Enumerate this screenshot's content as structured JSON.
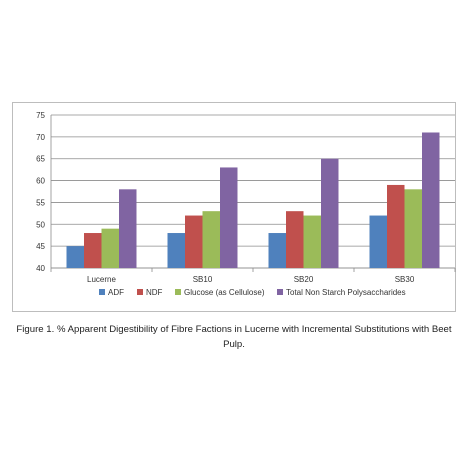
{
  "chart_data": {
    "type": "bar",
    "categories": [
      "Lucerne",
      "SB10",
      "SB20",
      "SB30"
    ],
    "series": [
      {
        "name": "ADF",
        "color": "#4F81BD",
        "values": [
          45,
          48,
          48,
          52
        ]
      },
      {
        "name": "NDF",
        "color": "#C0504D",
        "values": [
          48,
          52,
          53,
          59
        ]
      },
      {
        "name": "Glucose (as Cellulose)",
        "color": "#9BBB59",
        "values": [
          49,
          53,
          52,
          58
        ]
      },
      {
        "name": "Total Non Starch Polysaccharides",
        "color": "#8064A2",
        "values": [
          58,
          63,
          65,
          71
        ]
      }
    ],
    "ylim": [
      40,
      75
    ],
    "yticks": [
      40,
      45,
      50,
      55,
      60,
      65,
      70,
      75
    ],
    "grid": true,
    "legend_position": "bottom"
  },
  "caption": "Figure 1. % Apparent Digestibility of Fibre Factions in Lucerne with Incremental Substitutions with Beet Pulp."
}
